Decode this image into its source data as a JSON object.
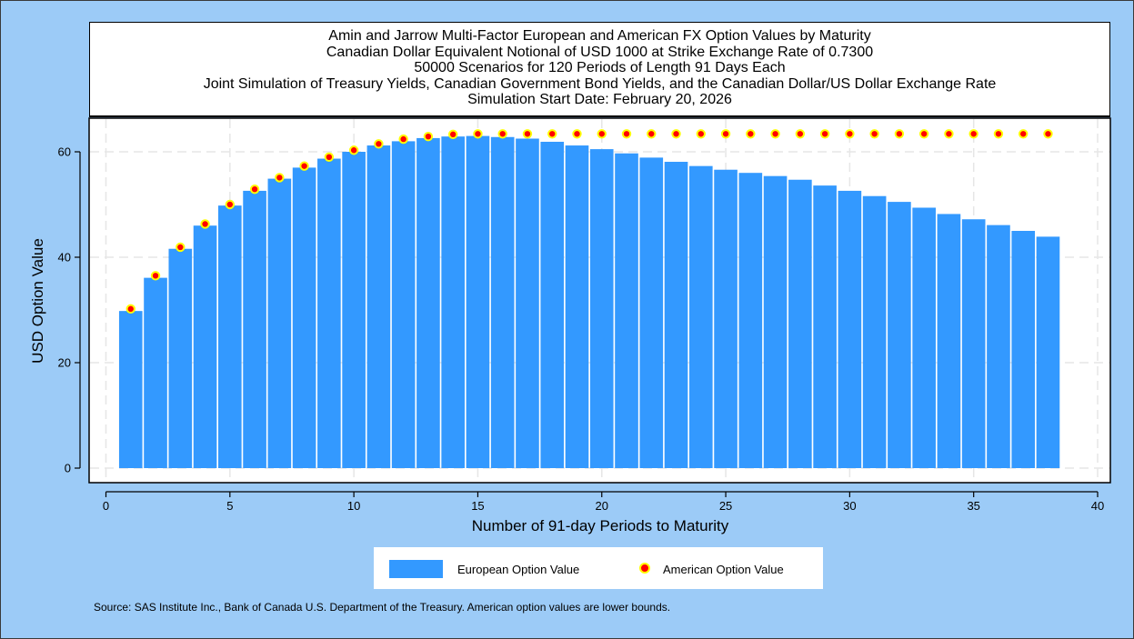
{
  "title_lines": [
    "Amin and Jarrow Multi-Factor European and American FX Option Values by Maturity",
    "Canadian Dollar Equivalent Notional of USD 1000 at Strike Exchange Rate of  0.7300",
    "50000 Scenarios for 120 Periods of Length 91 Days Each",
    "Joint Simulation of Treasury Yields, Canadian Government Bond Yields, and the Canadian Dollar/US Dollar Exchange Rate",
    "Simulation Start Date: February 20, 2026"
  ],
  "legend": {
    "european": "European Option Value",
    "american": "American Option Value"
  },
  "source": "Source: SAS Institute Inc., Bank of Canada U.S. Department of the Treasury. American option values are lower bounds.",
  "colors": {
    "background": "#9ccbf7",
    "bar": "#3399ff",
    "marker_fill": "#ff0000",
    "marker_edge": "#ffff00",
    "grid": "#e6e6e6"
  },
  "chart_data": {
    "type": "bar",
    "title": "Amin and Jarrow Multi-Factor European and American FX Option Values by Maturity",
    "xlabel": "Number of 91-day Periods to Maturity",
    "ylabel": "USD Option Value",
    "xlim": [
      -0.5,
      40.5
    ],
    "ylim": [
      -1.5,
      66
    ],
    "xticks": [
      0,
      5,
      10,
      15,
      20,
      25,
      30,
      35,
      40
    ],
    "yticks": [
      0,
      20,
      40,
      60
    ],
    "grid": true,
    "legend_position": "bottom",
    "x": [
      1,
      2,
      3,
      4,
      5,
      6,
      7,
      8,
      9,
      10,
      11,
      12,
      13,
      14,
      15,
      16,
      17,
      18,
      19,
      20,
      21,
      22,
      23,
      24,
      25,
      26,
      27,
      28,
      29,
      30,
      31,
      32,
      33,
      34,
      35,
      36,
      37,
      38
    ],
    "series": [
      {
        "name": "European Option Value",
        "type": "bar",
        "values": [
          29.8,
          36.1,
          41.6,
          46.0,
          49.8,
          52.6,
          54.9,
          57.0,
          58.7,
          60.0,
          61.2,
          62.0,
          62.6,
          62.9,
          63.0,
          62.8,
          62.5,
          61.9,
          61.2,
          60.5,
          59.7,
          58.9,
          58.1,
          57.3,
          56.6,
          56.0,
          55.4,
          54.7,
          53.6,
          52.6,
          51.6,
          50.5,
          49.4,
          48.2,
          47.2,
          46.1,
          45.0,
          43.9
        ]
      },
      {
        "name": "American Option Value",
        "type": "scatter",
        "values": [
          30.2,
          36.5,
          41.9,
          46.3,
          50.0,
          52.9,
          55.1,
          57.3,
          59.0,
          60.3,
          61.5,
          62.4,
          62.9,
          63.3,
          63.4,
          63.4,
          63.4,
          63.4,
          63.4,
          63.4,
          63.4,
          63.4,
          63.4,
          63.4,
          63.4,
          63.4,
          63.4,
          63.4,
          63.4,
          63.4,
          63.4,
          63.4,
          63.4,
          63.4,
          63.4,
          63.4,
          63.4,
          63.4
        ]
      }
    ]
  }
}
